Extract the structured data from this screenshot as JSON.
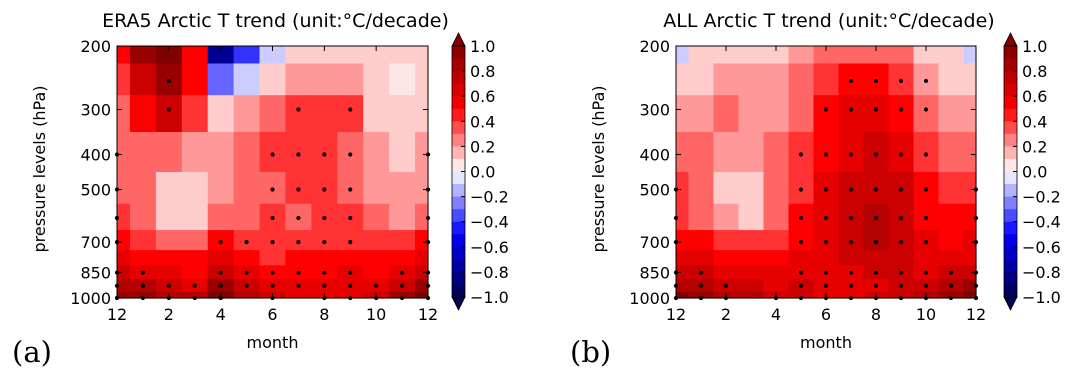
{
  "chart_data": [
    {
      "type": "heatmap",
      "panel_label": "(a)",
      "title": "ERA5 Arctic T trend (unit:°C/decade)",
      "xlabel": "month",
      "ylabel": "pressure levels (hPa)",
      "x_ticks": [
        "12",
        "2",
        "4",
        "6",
        "8",
        "10",
        "12"
      ],
      "y_ticks": [
        "200",
        "300",
        "400",
        "500",
        "700",
        "850",
        "1000"
      ],
      "y_scale": "log (reversed)",
      "x": [
        "12",
        "1",
        "2",
        "3",
        "4",
        "5",
        "6",
        "7",
        "8",
        "9",
        "10",
        "11",
        "12"
      ],
      "y": [
        200,
        250,
        300,
        400,
        500,
        600,
        700,
        775,
        850,
        925,
        1000
      ],
      "values": [
        [
          0.45,
          0.85,
          1.0,
          0.5,
          -0.8,
          -0.45,
          -0.1,
          0.05,
          0.1,
          0.1,
          0.05,
          0.05,
          0.05
        ],
        [
          0.35,
          0.7,
          0.9,
          0.45,
          -0.35,
          -0.15,
          0.1,
          0.2,
          0.2,
          0.2,
          0.05,
          0.0,
          0.05
        ],
        [
          0.3,
          0.5,
          0.7,
          0.35,
          0.05,
          0.15,
          0.25,
          0.35,
          0.35,
          0.35,
          0.1,
          0.05,
          0.1
        ],
        [
          0.3,
          0.3,
          0.25,
          0.15,
          0.2,
          0.3,
          0.35,
          0.4,
          0.35,
          0.3,
          0.15,
          0.1,
          0.15
        ],
        [
          0.3,
          0.25,
          0.05,
          0.05,
          0.2,
          0.3,
          0.3,
          0.35,
          0.35,
          0.3,
          0.15,
          0.15,
          0.2
        ],
        [
          0.35,
          0.25,
          0.05,
          0.1,
          0.3,
          0.3,
          0.35,
          0.3,
          0.35,
          0.35,
          0.25,
          0.2,
          0.3
        ],
        [
          0.45,
          0.35,
          0.25,
          0.3,
          0.45,
          0.4,
          0.35,
          0.35,
          0.4,
          0.4,
          0.35,
          0.35,
          0.45
        ],
        [
          0.55,
          0.5,
          0.45,
          0.45,
          0.6,
          0.5,
          0.4,
          0.45,
          0.45,
          0.5,
          0.45,
          0.45,
          0.55
        ],
        [
          0.65,
          0.6,
          0.55,
          0.5,
          0.7,
          0.55,
          0.5,
          0.5,
          0.5,
          0.55,
          0.5,
          0.6,
          0.7
        ],
        [
          0.75,
          0.75,
          0.65,
          0.6,
          0.85,
          0.65,
          0.55,
          0.55,
          0.55,
          0.6,
          0.6,
          0.7,
          0.85
        ],
        [
          0.9,
          0.85,
          0.8,
          0.75,
          0.95,
          0.8,
          0.65,
          0.55,
          0.55,
          0.6,
          0.7,
          0.85,
          1.0
        ]
      ],
      "significance_points": [
        [
          12,
          400
        ],
        [
          12,
          500
        ],
        [
          12,
          600
        ],
        [
          12,
          700
        ],
        [
          12,
          850
        ],
        [
          12,
          925
        ],
        [
          12,
          1000
        ],
        [
          1,
          850
        ],
        [
          1,
          925
        ],
        [
          1,
          1000
        ],
        [
          2,
          250
        ],
        [
          2,
          300
        ],
        [
          2,
          925
        ],
        [
          2,
          1000
        ],
        [
          3,
          925
        ],
        [
          3,
          1000
        ],
        [
          4,
          700
        ],
        [
          4,
          850
        ],
        [
          4,
          925
        ],
        [
          4,
          1000
        ],
        [
          5,
          700
        ],
        [
          5,
          850
        ],
        [
          5,
          925
        ],
        [
          6,
          400
        ],
        [
          6,
          500
        ],
        [
          6,
          600
        ],
        [
          6,
          700
        ],
        [
          6,
          850
        ],
        [
          6,
          925
        ],
        [
          6,
          1000
        ],
        [
          7,
          300
        ],
        [
          7,
          400
        ],
        [
          7,
          500
        ],
        [
          7,
          600
        ],
        [
          7,
          700
        ],
        [
          7,
          850
        ],
        [
          7,
          925
        ],
        [
          8,
          400
        ],
        [
          8,
          500
        ],
        [
          8,
          600
        ],
        [
          8,
          700
        ],
        [
          8,
          850
        ],
        [
          8,
          925
        ],
        [
          8,
          1000
        ],
        [
          9,
          300
        ],
        [
          9,
          400
        ],
        [
          9,
          500
        ],
        [
          9,
          600
        ],
        [
          9,
          700
        ],
        [
          9,
          850
        ],
        [
          9,
          925
        ],
        [
          9,
          1000
        ],
        [
          10,
          925
        ],
        [
          10,
          1000
        ],
        [
          11,
          850
        ],
        [
          11,
          925
        ],
        [
          11,
          1000
        ],
        [
          12,
          850
        ],
        [
          12,
          925
        ],
        [
          12,
          1000
        ]
      ],
      "colorbar": {
        "ticks": [
          "1.0",
          "0.8",
          "0.6",
          "0.4",
          "0.2",
          "0.0",
          "−0.2",
          "−0.4",
          "−0.6",
          "−0.8",
          "−1.0"
        ],
        "range": [
          -1.0,
          1.0
        ],
        "colormap": "seismic",
        "extend": "both"
      }
    },
    {
      "type": "heatmap",
      "panel_label": "(b)",
      "title": "ALL Arctic T trend (unit:°C/decade)",
      "xlabel": "month",
      "ylabel": "pressure levels (hPa)",
      "x_ticks": [
        "12",
        "2",
        "4",
        "6",
        "8",
        "10",
        "12"
      ],
      "y_ticks": [
        "200",
        "300",
        "400",
        "500",
        "700",
        "850",
        "1000"
      ],
      "y_scale": "log (reversed)",
      "x": [
        "12",
        "1",
        "2",
        "3",
        "4",
        "5",
        "6",
        "7",
        "8",
        "9",
        "10",
        "11",
        "12"
      ],
      "y": [
        200,
        250,
        300,
        400,
        500,
        600,
        700,
        775,
        850,
        925,
        1000
      ],
      "values": [
        [
          -0.1,
          0.05,
          0.05,
          0.05,
          0.1,
          0.15,
          0.25,
          0.3,
          0.3,
          0.25,
          0.1,
          0.05,
          -0.15
        ],
        [
          0.05,
          0.1,
          0.15,
          0.15,
          0.2,
          0.25,
          0.35,
          0.45,
          0.45,
          0.4,
          0.2,
          0.1,
          0.05
        ],
        [
          0.15,
          0.2,
          0.25,
          0.2,
          0.2,
          0.3,
          0.45,
          0.55,
          0.6,
          0.5,
          0.3,
          0.2,
          0.15
        ],
        [
          0.3,
          0.25,
          0.15,
          0.15,
          0.25,
          0.35,
          0.5,
          0.6,
          0.65,
          0.6,
          0.4,
          0.3,
          0.3
        ],
        [
          0.35,
          0.3,
          0.1,
          0.05,
          0.25,
          0.4,
          0.55,
          0.65,
          0.7,
          0.65,
          0.45,
          0.35,
          0.4
        ],
        [
          0.4,
          0.3,
          0.2,
          0.1,
          0.3,
          0.45,
          0.6,
          0.7,
          0.75,
          0.7,
          0.5,
          0.45,
          0.5
        ],
        [
          0.5,
          0.45,
          0.4,
          0.35,
          0.4,
          0.5,
          0.6,
          0.7,
          0.75,
          0.7,
          0.55,
          0.5,
          0.55
        ],
        [
          0.6,
          0.55,
          0.5,
          0.45,
          0.45,
          0.55,
          0.6,
          0.65,
          0.7,
          0.65,
          0.6,
          0.6,
          0.6
        ],
        [
          0.7,
          0.65,
          0.6,
          0.55,
          0.55,
          0.6,
          0.6,
          0.6,
          0.65,
          0.65,
          0.6,
          0.65,
          0.7
        ],
        [
          0.8,
          0.75,
          0.7,
          0.65,
          0.6,
          0.65,
          0.6,
          0.6,
          0.6,
          0.65,
          0.7,
          0.75,
          0.85
        ],
        [
          0.95,
          0.85,
          0.8,
          0.75,
          0.7,
          0.65,
          0.6,
          0.6,
          0.65,
          0.7,
          0.8,
          0.9,
          1.0
        ]
      ],
      "significance_points": [
        [
          12,
          500
        ],
        [
          12,
          600
        ],
        [
          12,
          700
        ],
        [
          12,
          850
        ],
        [
          12,
          925
        ],
        [
          12,
          1000
        ],
        [
          1,
          850
        ],
        [
          1,
          925
        ],
        [
          1,
          1000
        ],
        [
          2,
          925
        ],
        [
          2,
          1000
        ],
        [
          4,
          1000
        ],
        [
          5,
          400
        ],
        [
          5,
          500
        ],
        [
          5,
          600
        ],
        [
          5,
          700
        ],
        [
          5,
          850
        ],
        [
          5,
          925
        ],
        [
          5,
          1000
        ],
        [
          6,
          300
        ],
        [
          6,
          400
        ],
        [
          6,
          500
        ],
        [
          6,
          600
        ],
        [
          6,
          700
        ],
        [
          6,
          850
        ],
        [
          6,
          925
        ],
        [
          6,
          1000
        ],
        [
          7,
          250
        ],
        [
          7,
          300
        ],
        [
          7,
          400
        ],
        [
          7,
          500
        ],
        [
          7,
          600
        ],
        [
          7,
          700
        ],
        [
          7,
          850
        ],
        [
          7,
          925
        ],
        [
          7,
          1000
        ],
        [
          8,
          250
        ],
        [
          8,
          300
        ],
        [
          8,
          400
        ],
        [
          8,
          500
        ],
        [
          8,
          600
        ],
        [
          8,
          700
        ],
        [
          8,
          850
        ],
        [
          8,
          925
        ],
        [
          8,
          1000
        ],
        [
          9,
          250
        ],
        [
          9,
          300
        ],
        [
          9,
          400
        ],
        [
          9,
          500
        ],
        [
          9,
          600
        ],
        [
          9,
          700
        ],
        [
          9,
          850
        ],
        [
          9,
          925
        ],
        [
          9,
          1000
        ],
        [
          10,
          250
        ],
        [
          10,
          300
        ],
        [
          10,
          400
        ],
        [
          10,
          500
        ],
        [
          10,
          600
        ],
        [
          10,
          700
        ],
        [
          10,
          850
        ],
        [
          10,
          925
        ],
        [
          10,
          1000
        ],
        [
          11,
          850
        ],
        [
          11,
          925
        ],
        [
          11,
          1000
        ],
        [
          12,
          850
        ],
        [
          12,
          925
        ],
        [
          12,
          1000
        ]
      ],
      "colorbar": {
        "ticks": [
          "1.0",
          "0.8",
          "0.6",
          "0.4",
          "0.2",
          "0.0",
          "−0.2",
          "−0.4",
          "−0.6",
          "−0.8",
          "−1.0"
        ],
        "range": [
          -1.0,
          1.0
        ],
        "colormap": "seismic",
        "extend": "both"
      }
    }
  ]
}
